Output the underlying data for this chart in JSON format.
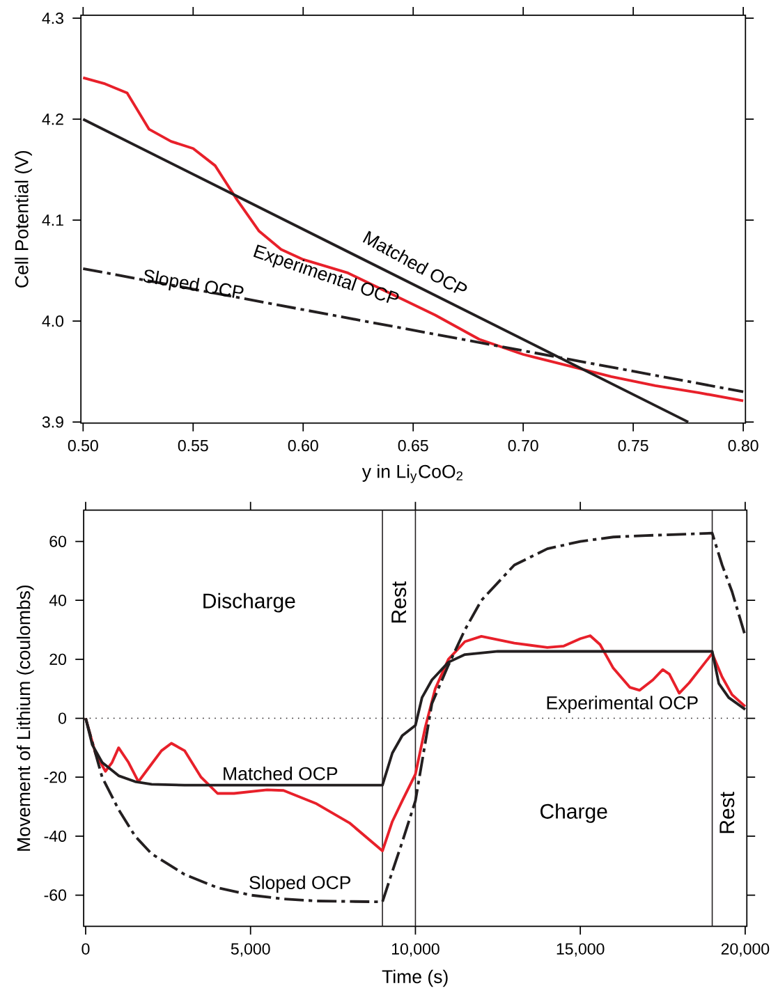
{
  "chart_data": [
    {
      "type": "line",
      "xlabel": "y in Li$_{y}$CoO$_{2}$",
      "ylabel": "Cell Potential (V)",
      "xlim": [
        0.499,
        0.801
      ],
      "ylim": [
        3.899,
        4.303
      ],
      "xticks": [
        {
          "value": 0.5,
          "label": "0.50"
        },
        {
          "value": 0.55,
          "label": "0.55"
        },
        {
          "value": 0.6,
          "label": "0.60"
        },
        {
          "value": 0.65,
          "label": "0.65"
        },
        {
          "value": 0.7,
          "label": "0.70"
        },
        {
          "value": 0.75,
          "label": "0.75"
        },
        {
          "value": 0.8,
          "label": "0.80"
        }
      ],
      "yticks": [
        {
          "value": 3.9,
          "label": "3.9"
        },
        {
          "value": 4.0,
          "label": "4.0"
        },
        {
          "value": 4.1,
          "label": "4.1"
        },
        {
          "value": 4.2,
          "label": "4.2"
        },
        {
          "value": 4.3,
          "label": "4.3"
        }
      ],
      "series": [
        {
          "name": "Experimental OCP",
          "color": "#e8202a",
          "line_style": "solid",
          "x": [
            0.5,
            0.51,
            0.52,
            0.53,
            0.54,
            0.55,
            0.56,
            0.57,
            0.58,
            0.59,
            0.6,
            0.62,
            0.64,
            0.66,
            0.68,
            0.7,
            0.72,
            0.74,
            0.76,
            0.78,
            0.8
          ],
          "values": [
            4.241,
            4.235,
            4.226,
            4.19,
            4.178,
            4.171,
            4.154,
            4.12,
            4.089,
            4.071,
            4.061,
            4.048,
            4.027,
            4.006,
            3.982,
            3.967,
            3.956,
            3.945,
            3.936,
            3.929,
            3.921
          ]
        },
        {
          "name": "Matched OCP",
          "color": "#231f20",
          "line_style": "solid",
          "x": [
            0.5,
            0.775
          ],
          "values": [
            4.2,
            3.9
          ]
        },
        {
          "name": "Sloped OCP",
          "color": "#231f20",
          "line_style": "dashdot",
          "x": [
            0.5,
            0.8
          ],
          "values": [
            4.052,
            3.93
          ]
        }
      ]
    },
    {
      "type": "line",
      "xlabel": "Time (s)",
      "ylabel": "Movement of Lithium (coulombs)",
      "xlim": [
        -60,
        20050
      ],
      "ylim": [
        -70.6,
        70.6
      ],
      "xticks": [
        {
          "value": 0,
          "label": "0"
        },
        {
          "value": 5000,
          "label": "5,000"
        },
        {
          "value": 10000,
          "label": "10,000"
        },
        {
          "value": 15000,
          "label": "15,000"
        },
        {
          "value": 20000,
          "label": "20,000"
        }
      ],
      "yticks": [
        -60,
        -40,
        -20,
        0,
        20,
        40,
        60
      ],
      "ref_lines": [
        {
          "axis": "x",
          "value": 9000,
          "color": "#231f20"
        },
        {
          "axis": "x",
          "value": 10000,
          "color": "#231f20"
        },
        {
          "axis": "x",
          "value": 19000,
          "color": "#231f20"
        },
        {
          "axis": "y",
          "value": 0,
          "color": "#231f20",
          "line_style": "dotted"
        }
      ],
      "annotations": [
        "Discharge",
        "Rest",
        "Charge",
        "Rest"
      ],
      "series": [
        {
          "name": "Experimental OCP",
          "color": "#e8202a",
          "line_style": "solid",
          "x": [
            0,
            300,
            600,
            800,
            1000,
            1300,
            1600,
            1900,
            2300,
            2600,
            3000,
            3500,
            4000,
            4500,
            5500,
            6000,
            7000,
            8000,
            9000,
            9300,
            9600,
            10000,
            10300,
            10600,
            11000,
            11500,
            12000,
            13000,
            14000,
            14500,
            15000,
            15300,
            15600,
            16000,
            16500,
            16800,
            17200,
            17500,
            17700,
            18000,
            18300,
            19000,
            19300,
            19600,
            20000
          ],
          "values": [
            0,
            -12,
            -18,
            -15,
            -10,
            -15,
            -21.5,
            -17,
            -11,
            -8.5,
            -11,
            -20,
            -25.5,
            -25.5,
            -24.3,
            -24.5,
            -29,
            -35.5,
            -45,
            -35,
            -28,
            -19,
            -3,
            10,
            20,
            26,
            27.8,
            25.5,
            24,
            24.5,
            27,
            28,
            25,
            17,
            10.5,
            9.5,
            13,
            16.5,
            15,
            8.5,
            12,
            22,
            14,
            8,
            4
          ]
        },
        {
          "name": "Matched OCP",
          "color": "#231f20",
          "line_style": "solid",
          "x": [
            0,
            200,
            500,
            1000,
            1500,
            2000,
            3000,
            9000,
            9300,
            9600,
            10000,
            10200,
            10500,
            11000,
            11500,
            12500,
            19000,
            19200,
            19500,
            20000
          ],
          "values": [
            0,
            -9,
            -15,
            -19.5,
            -21.5,
            -22.4,
            -22.7,
            -22.7,
            -11.8,
            -5.9,
            -2.4,
            7,
            13,
            19,
            21.6,
            22.7,
            22.7,
            11.8,
            7,
            3
          ]
        },
        {
          "name": "Sloped OCP",
          "color": "#231f20",
          "line_style": "dashdot",
          "x": [
            0,
            500,
            1000,
            1500,
            2000,
            3000,
            4000,
            5000,
            6000,
            7000,
            9000,
            9300,
            9600,
            10000,
            10500,
            11000,
            11500,
            12000,
            13000,
            14000,
            15000,
            16000,
            17000,
            19000,
            19300,
            19600,
            20000
          ],
          "values": [
            0,
            -20,
            -31,
            -40,
            -46,
            -53,
            -57.5,
            -60,
            -61.3,
            -62,
            -62.3,
            -52,
            -42,
            -28,
            5,
            18,
            30,
            40,
            52,
            57.5,
            60,
            61.5,
            62,
            62.8,
            52,
            43,
            28
          ]
        }
      ]
    }
  ]
}
